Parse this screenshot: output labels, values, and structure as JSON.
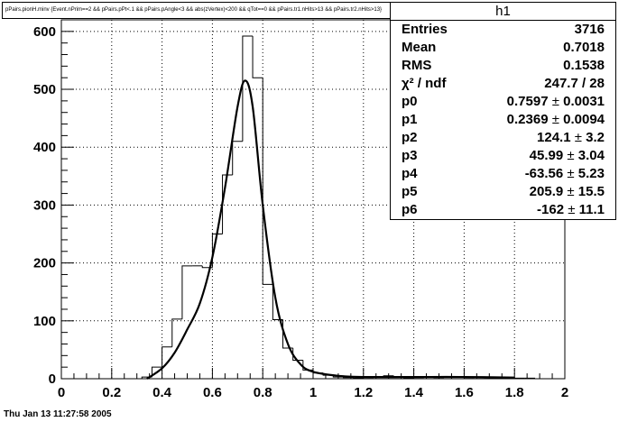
{
  "cut_text": "pPairs.pionH.minv {Event.nPrim==2 && pPairs.pPt<.1 && pPairs.pAngle<3 && abs(zVertex)<200 && qTot==0 && pPairs.tr1.nHits>13 && pPairs.tr2.nHits>13}",
  "stats_box": {
    "title": "h1",
    "rows": [
      {
        "label": "Entries",
        "value": "3716"
      },
      {
        "label": "Mean",
        "value": "0.7018"
      },
      {
        "label": "RMS",
        "value": "0.1538"
      },
      {
        "label": "χ² / ndf",
        "value": "247.7 / 28"
      },
      {
        "label": "p0",
        "value": "0.7597",
        "error": "0.0031"
      },
      {
        "label": "p1",
        "value": "0.2369",
        "error": "0.0094"
      },
      {
        "label": "p2",
        "value": "124.1",
        "error": "3.2"
      },
      {
        "label": "p3",
        "value": "45.99",
        "error": "3.04"
      },
      {
        "label": "p4",
        "value": "-63.56",
        "error": "5.23"
      },
      {
        "label": "p5",
        "value": "205.9",
        "error": "15.5"
      },
      {
        "label": "p6",
        "value": "-162",
        "error": "11.1"
      }
    ],
    "pm_symbol": "±"
  },
  "footer_date": "Thu Jan 13 11:27:58 2005",
  "chart_data": {
    "type": "histogram",
    "xlim": [
      0,
      2
    ],
    "ylim": [
      0,
      620
    ],
    "xticks": [
      "0",
      "0.2",
      "0.4",
      "0.6",
      "0.8",
      "1",
      "1.2",
      "1.4",
      "1.6",
      "1.8",
      "2"
    ],
    "xtick_values": [
      0,
      0.2,
      0.4,
      0.6,
      0.8,
      1.0,
      1.2,
      1.4,
      1.6,
      1.8,
      2.0
    ],
    "yticks": [
      "0",
      "100",
      "200",
      "300",
      "400",
      "500",
      "600"
    ],
    "ytick_values": [
      0,
      100,
      200,
      300,
      400,
      500,
      600
    ],
    "grid": true,
    "bin_width": 0.04,
    "bins": [
      {
        "x": 0.32,
        "y": 3
      },
      {
        "x": 0.36,
        "y": 20
      },
      {
        "x": 0.4,
        "y": 55
      },
      {
        "x": 0.44,
        "y": 103
      },
      {
        "x": 0.48,
        "y": 195
      },
      {
        "x": 0.52,
        "y": 195
      },
      {
        "x": 0.56,
        "y": 192
      },
      {
        "x": 0.6,
        "y": 250
      },
      {
        "x": 0.64,
        "y": 352
      },
      {
        "x": 0.68,
        "y": 410
      },
      {
        "x": 0.72,
        "y": 592
      },
      {
        "x": 0.76,
        "y": 520
      },
      {
        "x": 0.8,
        "y": 163
      },
      {
        "x": 0.84,
        "y": 102
      },
      {
        "x": 0.88,
        "y": 53
      },
      {
        "x": 0.92,
        "y": 32
      },
      {
        "x": 0.96,
        "y": 15
      },
      {
        "x": 1.0,
        "y": 10
      },
      {
        "x": 1.04,
        "y": 6
      },
      {
        "x": 1.08,
        "y": 3
      },
      {
        "x": 1.12,
        "y": 2
      },
      {
        "x": 1.16,
        "y": 1
      },
      {
        "x": 1.2,
        "y": 2
      },
      {
        "x": 1.24,
        "y": 3
      },
      {
        "x": 1.28,
        "y": 5
      },
      {
        "x": 1.32,
        "y": 3
      },
      {
        "x": 1.36,
        "y": 1
      },
      {
        "x": 1.4,
        "y": 2
      },
      {
        "x": 1.44,
        "y": 3
      },
      {
        "x": 1.48,
        "y": 2
      },
      {
        "x": 1.52,
        "y": 3
      },
      {
        "x": 1.56,
        "y": 3
      },
      {
        "x": 1.6,
        "y": 2
      },
      {
        "x": 1.64,
        "y": 3
      },
      {
        "x": 1.68,
        "y": 2
      },
      {
        "x": 1.72,
        "y": 2
      },
      {
        "x": 1.76,
        "y": 1
      },
      {
        "x": 1.8,
        "y": 1
      },
      {
        "x": 1.84,
        "y": 1
      }
    ],
    "fit_curve": [
      {
        "x": 0.34,
        "y": 0
      },
      {
        "x": 0.4,
        "y": 18
      },
      {
        "x": 0.45,
        "y": 45
      },
      {
        "x": 0.5,
        "y": 85
      },
      {
        "x": 0.55,
        "y": 130
      },
      {
        "x": 0.6,
        "y": 210
      },
      {
        "x": 0.65,
        "y": 330
      },
      {
        "x": 0.7,
        "y": 470
      },
      {
        "x": 0.73,
        "y": 515
      },
      {
        "x": 0.76,
        "y": 470
      },
      {
        "x": 0.8,
        "y": 300
      },
      {
        "x": 0.85,
        "y": 140
      },
      {
        "x": 0.9,
        "y": 60
      },
      {
        "x": 0.95,
        "y": 25
      },
      {
        "x": 1.0,
        "y": 12
      },
      {
        "x": 1.1,
        "y": 5
      },
      {
        "x": 1.2,
        "y": 3
      },
      {
        "x": 1.4,
        "y": 3
      },
      {
        "x": 1.6,
        "y": 3
      },
      {
        "x": 1.8,
        "y": 2
      }
    ]
  }
}
